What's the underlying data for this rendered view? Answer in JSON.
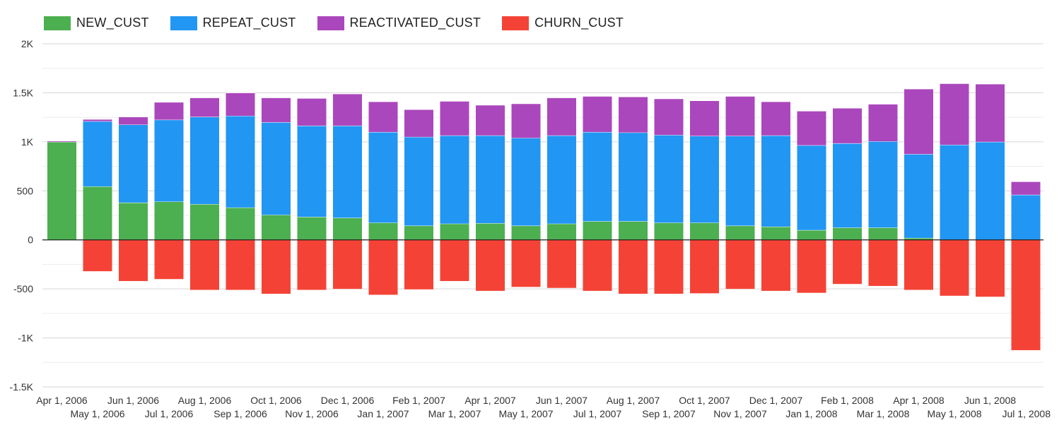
{
  "chart_data": {
    "type": "bar",
    "stacked": true,
    "legend_position": "top-left",
    "grid": true,
    "ylim": [
      -1500,
      2000
    ],
    "yticks": [
      {
        "value": 2000,
        "label": "2K"
      },
      {
        "value": 1500,
        "label": "1.5K"
      },
      {
        "value": 1000,
        "label": "1K"
      },
      {
        "value": 500,
        "label": "500"
      },
      {
        "value": 0,
        "label": "0"
      },
      {
        "value": -500,
        "label": "-500"
      },
      {
        "value": -1000,
        "label": "-1K"
      },
      {
        "value": -1500,
        "label": "-1.5K"
      }
    ],
    "categories": [
      "Apr 1, 2006",
      "May 1, 2006",
      "Jun 1, 2006",
      "Jul 1, 2006",
      "Aug 1, 2006",
      "Sep 1, 2006",
      "Oct 1, 2006",
      "Nov 1, 2006",
      "Dec 1, 2006",
      "Jan 1, 2007",
      "Feb 1, 2007",
      "Mar 1, 2007",
      "Apr 1, 2007",
      "May 1, 2007",
      "Jun 1, 2007",
      "Jul 1, 2007",
      "Aug 1, 2007",
      "Sep 1, 2007",
      "Oct 1, 2007",
      "Nov 1, 2007",
      "Dec 1, 2007",
      "Jan 1, 2008",
      "Feb 1, 2008",
      "Mar 1, 2008",
      "Apr 1, 2008",
      "May 1, 2008",
      "Jun 1, 2008",
      "Jul 1, 2008"
    ],
    "series": [
      {
        "name": "NEW_CUST",
        "color": "#4caf50",
        "values": [
          1000,
          545,
          380,
          390,
          365,
          330,
          255,
          235,
          225,
          175,
          145,
          165,
          170,
          145,
          165,
          190,
          190,
          175,
          175,
          145,
          135,
          100,
          125,
          125,
          20,
          0,
          0,
          0
        ]
      },
      {
        "name": "REPEAT_CUST",
        "color": "#2196f3",
        "values": [
          0,
          665,
          795,
          835,
          890,
          935,
          945,
          930,
          940,
          925,
          905,
          900,
          895,
          895,
          900,
          910,
          905,
          895,
          885,
          915,
          930,
          865,
          860,
          880,
          855,
          970,
          1000,
          460
        ]
      },
      {
        "name": "REACTIVATED_CUST",
        "color": "#ab47bc",
        "values": [
          10,
          20,
          80,
          180,
          195,
          235,
          250,
          280,
          325,
          310,
          280,
          350,
          310,
          350,
          385,
          365,
          365,
          370,
          360,
          405,
          345,
          350,
          360,
          380,
          665,
          625,
          590,
          135
        ]
      },
      {
        "name": "CHURN_CUST",
        "color": "#f44336",
        "values": [
          0,
          -320,
          -420,
          -400,
          -510,
          -510,
          -550,
          -510,
          -500,
          -560,
          -505,
          -420,
          -520,
          -480,
          -490,
          -520,
          -550,
          -550,
          -545,
          -500,
          -520,
          -540,
          -450,
          -470,
          -510,
          -570,
          -580,
          -1125
        ]
      }
    ]
  }
}
